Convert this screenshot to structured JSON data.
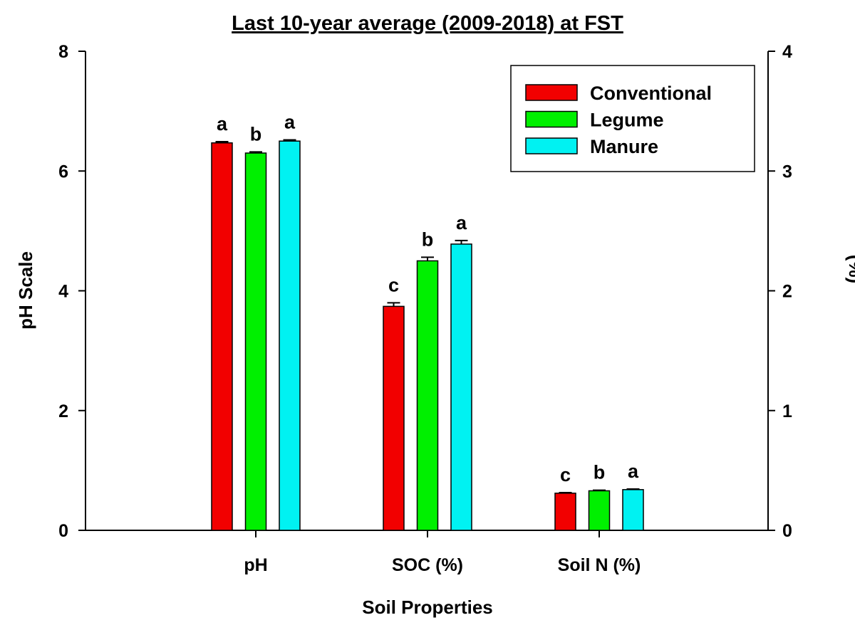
{
  "chart_data": {
    "type": "bar",
    "title": "Last 10-year average (2009-2018) at FST",
    "xlabel": "Soil Properties",
    "ylabel": "pH Scale",
    "ylabel_right": "(%)",
    "ylim": [
      0,
      8
    ],
    "ylim_right": [
      0,
      4
    ],
    "yticks": [
      "0",
      "2",
      "4",
      "6",
      "8"
    ],
    "yticks_right": [
      "0",
      "1",
      "2",
      "3",
      "4"
    ],
    "categories": [
      "pH",
      "SOC (%)",
      "Soil N (%)"
    ],
    "category_axis": [
      "left",
      "right",
      "right"
    ],
    "legend_position": "top-right",
    "series": [
      {
        "name": "Conventional",
        "color": "#f20000",
        "values": [
          6.47,
          1.87,
          0.31
        ],
        "errors": [
          0.02,
          0.03,
          0.005
        ],
        "letters": [
          "a",
          "c",
          "c"
        ]
      },
      {
        "name": "Legume",
        "color": "#00f000",
        "values": [
          6.3,
          2.25,
          0.33
        ],
        "errors": [
          0.02,
          0.03,
          0.005
        ],
        "letters": [
          "b",
          "b",
          "b"
        ]
      },
      {
        "name": "Manure",
        "color": "#00f2f2",
        "values": [
          6.5,
          2.39,
          0.34
        ],
        "errors": [
          0.02,
          0.03,
          0.005
        ],
        "letters": [
          "a",
          "a",
          "a"
        ]
      }
    ]
  }
}
